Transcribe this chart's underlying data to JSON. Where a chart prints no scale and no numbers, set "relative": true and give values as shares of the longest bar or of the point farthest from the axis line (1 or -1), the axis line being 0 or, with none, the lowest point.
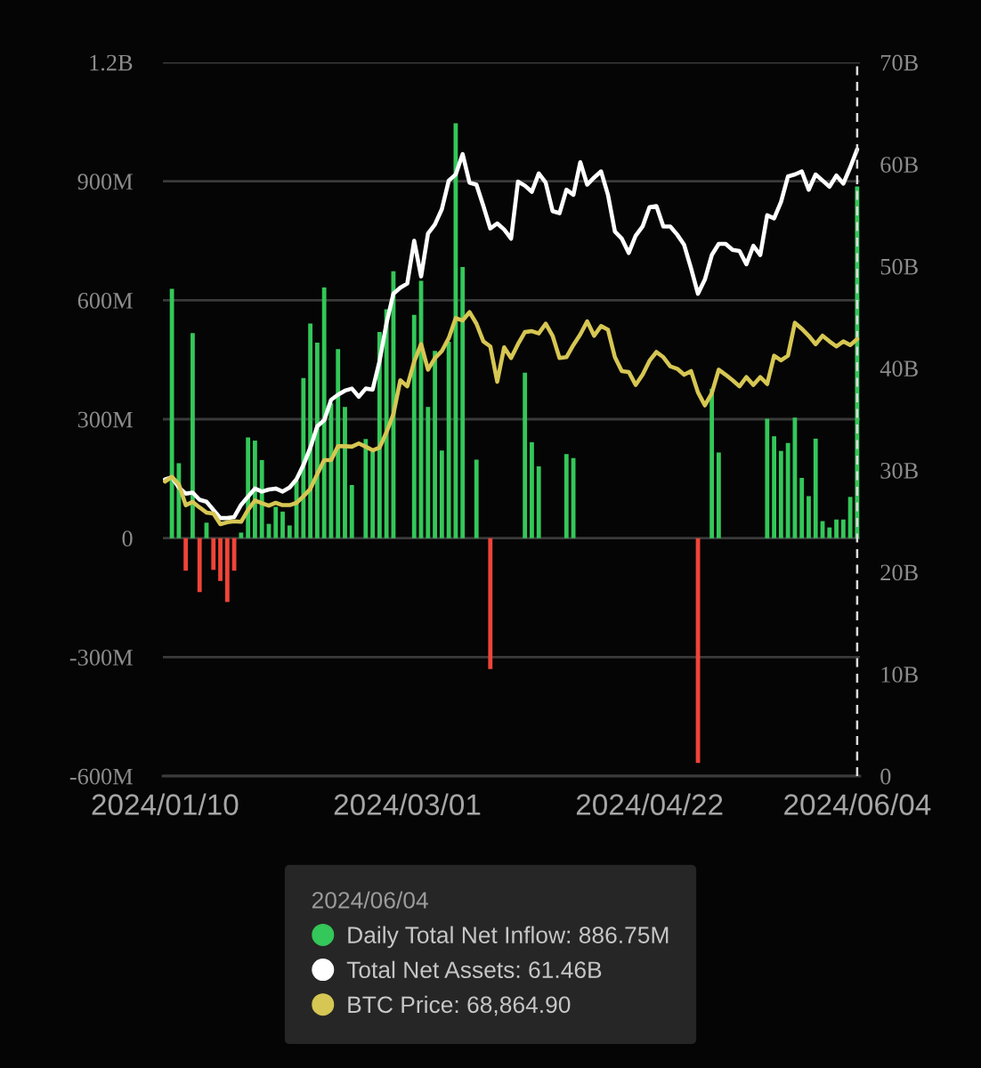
{
  "chart_data": [
    {
      "type": "bar",
      "categories": [
        "2024/01/10",
        null,
        null,
        null,
        null,
        null,
        null,
        null,
        null,
        null,
        null,
        null,
        null,
        null,
        null,
        null,
        null,
        null,
        null,
        null,
        null,
        null,
        null,
        null,
        null,
        null,
        null,
        null,
        null,
        null,
        null,
        null,
        null,
        null,
        null,
        "2024/03/01",
        null,
        null,
        null,
        null,
        null,
        null,
        null,
        null,
        null,
        null,
        null,
        null,
        null,
        null,
        null,
        null,
        null,
        null,
        null,
        null,
        null,
        null,
        null,
        null,
        null,
        null,
        null,
        null,
        null,
        null,
        null,
        null,
        null,
        null,
        "2024/04/22",
        null,
        null,
        null,
        null,
        null,
        null,
        null,
        null,
        null,
        null,
        null,
        null,
        null,
        null,
        null,
        null,
        null,
        null,
        null,
        null,
        null,
        null,
        null,
        null,
        null,
        null,
        null,
        null,
        null,
        "2024/06/04"
      ],
      "series": [
        {
          "name": "Daily Total Net Inflow: 886.75M",
          "color": "#34c759",
          "colors": [
            null,
            "#34c759",
            "#34c759",
            "#f04438",
            "#34c759",
            "#f04438",
            "#34c759",
            "#f04438",
            "#f04438",
            "#f04438",
            "#f04438",
            "#34c759",
            "#34c759",
            "#34c759",
            "#34c759",
            "#34c759",
            "#34c759",
            "#34c759",
            "#34c759",
            "#34c759",
            "#34c759",
            "#34c759",
            "#34c759",
            "#34c759",
            "#34c759",
            "#34c759",
            "#34c759",
            "#34c759",
            null,
            "#34c759",
            "#34c759",
            "#34c759",
            "#34c759",
            "#34c759",
            null,
            null,
            "#34c759",
            "#34c759",
            "#34c759",
            "#34c759",
            "#34c759",
            "#34c759",
            "#34c759",
            "#34c759",
            null,
            "#34c759",
            null,
            "#f04438",
            null,
            null,
            null,
            null,
            "#34c759",
            "#34c759",
            "#34c759",
            null,
            null,
            null,
            "#34c759",
            "#34c759",
            null,
            null,
            null,
            null,
            null,
            null,
            null,
            null,
            null,
            null,
            null,
            null,
            null,
            null,
            null,
            null,
            null,
            "#f04438",
            null,
            "#34c759",
            "#34c759",
            null,
            null,
            null,
            null,
            null,
            null,
            "#34c759",
            "#34c759",
            "#34c759",
            "#34c759",
            "#34c759",
            "#34c759",
            "#34c759",
            "#34c759",
            "#34c759",
            "#34c759",
            "#34c759",
            "#34c759",
            "#34c759",
            "#34c759"
          ],
          "values": [
            null,
            629000000.0,
            189000000.0,
            -82000000.0,
            517000000.0,
            -136000000.0,
            39000000.0,
            -80000000.0,
            -108000000.0,
            -161000000.0,
            -82000000.0,
            14000000.0,
            254000000.0,
            246000000.0,
            197000000.0,
            36000000.0,
            79000000.0,
            67000000.0,
            32000000.0,
            145000000.0,
            404000000.0,
            541000000.0,
            493000000.0,
            632000000.0,
            340000000.0,
            477000000.0,
            331000000.0,
            134000000.0,
            null,
            250000000.0,
            218000000.0,
            520000000.0,
            577000000.0,
            673000000.0,
            null,
            null,
            563000000.0,
            649000000.0,
            331000000.0,
            472000000.0,
            221000000.0,
            495000000.0,
            1046000000.0,
            684000000.0,
            null,
            198000000.0,
            null,
            -330000000.0,
            null,
            null,
            null,
            null,
            417000000.0,
            242000000.0,
            181000000.0,
            null,
            null,
            null,
            212000000.0,
            202000000.0,
            null,
            null,
            null,
            null,
            null,
            null,
            null,
            null,
            null,
            null,
            null,
            null,
            null,
            null,
            null,
            null,
            null,
            -567000000.0,
            null,
            377000000.0,
            216000000.0,
            null,
            null,
            null,
            null,
            null,
            null,
            301000000.0,
            257000000.0,
            220000000.0,
            240000000.0,
            304000000.0,
            152000000.0,
            106000000.0,
            251000000.0,
            43000000.0,
            27000000.0,
            47000000.0,
            47000000.0,
            104000000.0,
            886750000.0
          ]
        },
        {
          "name": "Total Net Assets: 61.46B",
          "type": "line",
          "axis": "y2",
          "color": "#ffffff",
          "values": [
            29100000000.0,
            29300000000.0,
            28300000000.0,
            27700000000.0,
            27800000000.0,
            27100000000.0,
            26900000000.0,
            26100000000.0,
            25300000000.0,
            25300000000.0,
            25400000000.0,
            26600000000.0,
            27400000000.0,
            28200000000.0,
            27900000000.0,
            28100000000.0,
            28200000000.0,
            27900000000.0,
            28300000000.0,
            29100000000.0,
            30500000000.0,
            32200000000.0,
            34300000000.0,
            34900000000.0,
            36900000000.0,
            37400000000.0,
            37800000000.0,
            38000000000.0,
            37200000000.0,
            38000000000.0,
            37900000000.0,
            40700000000.0,
            44400000000.0,
            47300000000.0,
            47900000000.0,
            48300000000.0,
            52500000000.0,
            49000000000.0,
            53200000000.0,
            54100000000.0,
            55600000000.0,
            58400000000.0,
            59000000000.0,
            61000000000.0,
            58200000000.0,
            58000000000.0,
            55900000000.0,
            53700000000.0,
            54200000000.0,
            53600000000.0,
            52700000000.0,
            58300000000.0,
            57900000000.0,
            57300000000.0,
            59100000000.0,
            58200000000.0,
            55400000000.0,
            55200000000.0,
            57500000000.0,
            57000000000.0,
            60200000000.0,
            58000000000.0,
            58700000000.0,
            59300000000.0,
            57000000000.0,
            53400000000.0,
            52700000000.0,
            51300000000.0,
            53000000000.0,
            53900000000.0,
            55800000000.0,
            55900000000.0,
            53900000000.0,
            53900000000.0,
            53100000000.0,
            52100000000.0,
            49800000000.0,
            47300000000.0,
            48700000000.0,
            51100000000.0,
            52200000000.0,
            52200000000.0,
            51600000000.0,
            51500000000.0,
            50200000000.0,
            52000000000.0,
            51100000000.0,
            55000000000.0,
            54700000000.0,
            56300000000.0,
            58800000000.0,
            59000000000.0,
            59300000000.0,
            57500000000.0,
            59000000000.0,
            58400000000.0,
            57800000000.0,
            58900000000.0,
            58100000000.0,
            59700000000.0,
            61460000000.0
          ]
        }
      ],
      "ylim": [
        -600000000.0,
        1200000000.0
      ],
      "yticks": [
        {
          "value": 1200000000.0,
          "label": "1.2B"
        },
        {
          "value": 900000000.0,
          "label": "900M"
        },
        {
          "value": 600000000.0,
          "label": "600M"
        },
        {
          "value": 300000000.0,
          "label": "300M"
        },
        0,
        {
          "value": -300000000.0,
          "label": "-300M"
        },
        {
          "value": -600000000.0,
          "label": "-600M"
        }
      ],
      "y2lim": [
        0,
        70000000000.0
      ],
      "y2ticks": [
        0,
        {
          "value": 10000000000.0,
          "label": "10B"
        },
        {
          "value": 20000000000.0,
          "label": "20B"
        },
        {
          "value": 30000000000.0,
          "label": "30B"
        },
        {
          "value": 40000000000.0,
          "label": "40B"
        },
        {
          "value": 50000000000.0,
          "label": "50B"
        },
        {
          "value": 60000000000.0,
          "label": "60B"
        },
        {
          "value": 70000000000.0,
          "label": "70B"
        }
      ],
      "grid": "y",
      "legend": "bottom",
      "legend_title": "2024/06/04",
      "ref_lines": [
        {
          "axis": "x",
          "value": "2024/06/04",
          "color": "#dcdcdc",
          "line_style": "dashed"
        }
      ]
    },
    {
      "type": "line",
      "relative": true,
      "tick_labels": false,
      "categories": [
        "2024/01/10",
        null,
        null,
        null,
        null,
        null,
        null,
        null,
        null,
        null,
        null,
        null,
        null,
        null,
        null,
        null,
        null,
        null,
        null,
        null,
        null,
        null,
        null,
        null,
        null,
        null,
        null,
        null,
        null,
        null,
        null,
        null,
        null,
        null,
        null,
        "2024/03/01",
        null,
        null,
        null,
        null,
        null,
        null,
        null,
        null,
        null,
        null,
        null,
        null,
        null,
        null,
        null,
        null,
        null,
        null,
        null,
        null,
        null,
        null,
        null,
        null,
        null,
        null,
        null,
        null,
        null,
        null,
        null,
        null,
        null,
        null,
        "2024/04/22",
        null,
        null,
        null,
        null,
        null,
        null,
        null,
        null,
        null,
        null,
        null,
        null,
        null,
        null,
        null,
        null,
        null,
        null,
        null,
        null,
        null,
        null,
        null,
        null,
        null,
        null,
        null,
        null,
        null,
        "2024/06/04"
      ],
      "series": [
        {
          "name": "BTC Price: 68,864.90",
          "color": "#d6c653",
          "values": [
            0.635,
            0.645,
            0.629,
            0.584,
            0.591,
            0.579,
            0.568,
            0.566,
            0.543,
            0.547,
            0.549,
            0.548,
            0.574,
            0.594,
            0.588,
            0.583,
            0.589,
            0.584,
            0.584,
            0.589,
            0.603,
            0.619,
            0.651,
            0.681,
            0.681,
            0.711,
            0.711,
            0.71,
            0.717,
            0.71,
            0.702,
            0.708,
            0.741,
            0.78,
            0.853,
            0.84,
            0.893,
            0.931,
            0.876,
            0.901,
            0.916,
            0.944,
            0.987,
            0.982,
            1,
            0.975,
            0.937,
            0.926,
            0.85,
            0.924,
            0.901,
            0.931,
            0.957,
            0.959,
            0.954,
            0.975,
            0.949,
            0.901,
            0.903,
            0.929,
            0.952,
            0.98,
            0.949,
            0.97,
            0.962,
            0.903,
            0.873,
            0.871,
            0.843,
            0.865,
            0.895,
            0.914,
            0.903,
            0.883,
            0.878,
            0.865,
            0.873,
            0.827,
            0.799,
            0.825,
            0.876,
            0.865,
            0.853,
            0.84,
            0.86,
            0.843,
            0.86,
            0.845,
            0.906,
            0.896,
            0.906,
            0.977,
            0.964,
            0.949,
            0.931,
            0.949,
            0.937,
            0.926,
            0.937,
            0.929,
            0.942
          ]
        }
      ]
    }
  ]
}
